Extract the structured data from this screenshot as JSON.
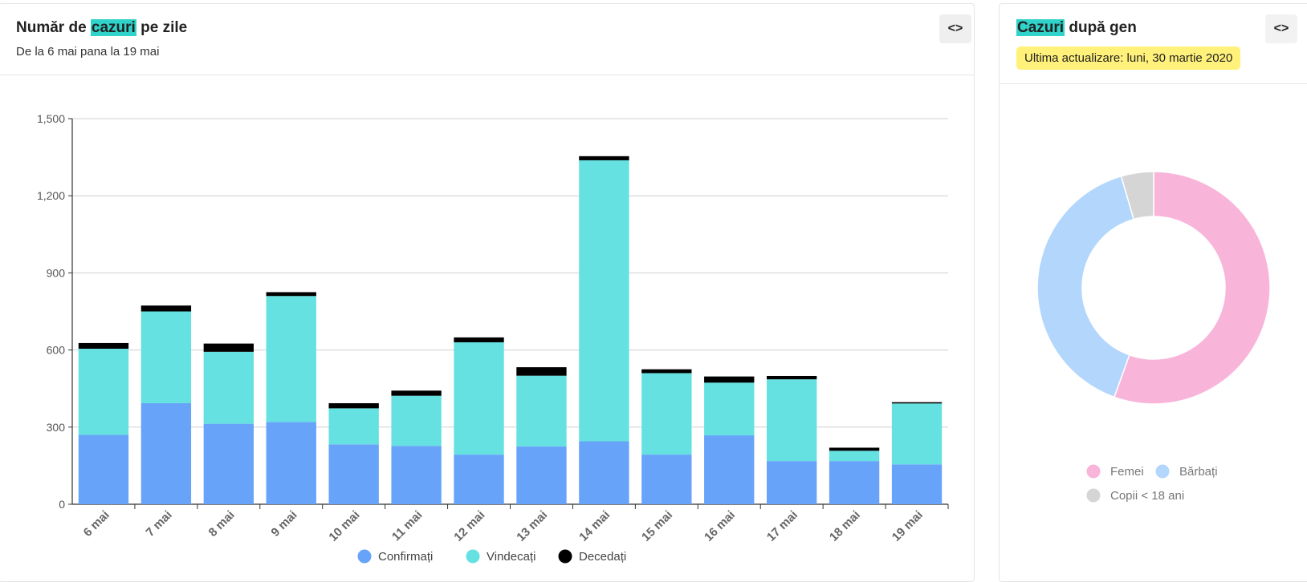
{
  "daily": {
    "title_hl": "cazuri",
    "title_pre": "Număr de ",
    "title_post": " pe zile",
    "subtitle": "De la 6 mai pana la 19 mai",
    "code_button": "<>"
  },
  "gender": {
    "title_hl": "Cazuri",
    "title_post": " după gen",
    "update": "Ultima actualizare: luni, 30 martie 2020",
    "code_button": "<>"
  },
  "chart_data": [
    {
      "type": "bar",
      "stacked": true,
      "title": "Număr de cazuri pe zile",
      "subtitle": "De la 6 mai pana la 19 mai",
      "categories": [
        "6 mai",
        "7 mai",
        "8 mai",
        "9 mai",
        "10 mai",
        "11 mai",
        "12 mai",
        "13 mai",
        "14 mai",
        "15 mai",
        "16 mai",
        "17 mai",
        "18 mai",
        "19 mai"
      ],
      "series": [
        {
          "name": "Confirmați",
          "color": "#66a3f9",
          "values": [
            270,
            393,
            313,
            320,
            233,
            227,
            193,
            225,
            245,
            193,
            268,
            168,
            168,
            155
          ]
        },
        {
          "name": "Vindecați",
          "color": "#64e1e0",
          "values": [
            335,
            357,
            280,
            490,
            140,
            195,
            437,
            275,
            1093,
            317,
            205,
            318,
            40,
            237
          ]
        },
        {
          "name": "Decedați",
          "color": "#000000",
          "values": [
            22,
            23,
            32,
            15,
            20,
            20,
            19,
            33,
            16,
            15,
            24,
            13,
            12,
            5
          ]
        }
      ],
      "yticks": [
        "0",
        "300",
        "600",
        "900",
        "1,200",
        "1,500"
      ],
      "ylim": [
        0,
        1500
      ],
      "grid": true,
      "legend_position": "bottom-center"
    },
    {
      "type": "pie",
      "donut": true,
      "title": "Cazuri după gen",
      "labels": [
        "Femei",
        "Bărbați",
        "Copii < 18 ani"
      ],
      "values": [
        55.5,
        40,
        4.5
      ],
      "colors": [
        "#f8b4d9",
        "#b3d6fc",
        "#d5d5d5"
      ],
      "legend_position": "bottom"
    }
  ]
}
